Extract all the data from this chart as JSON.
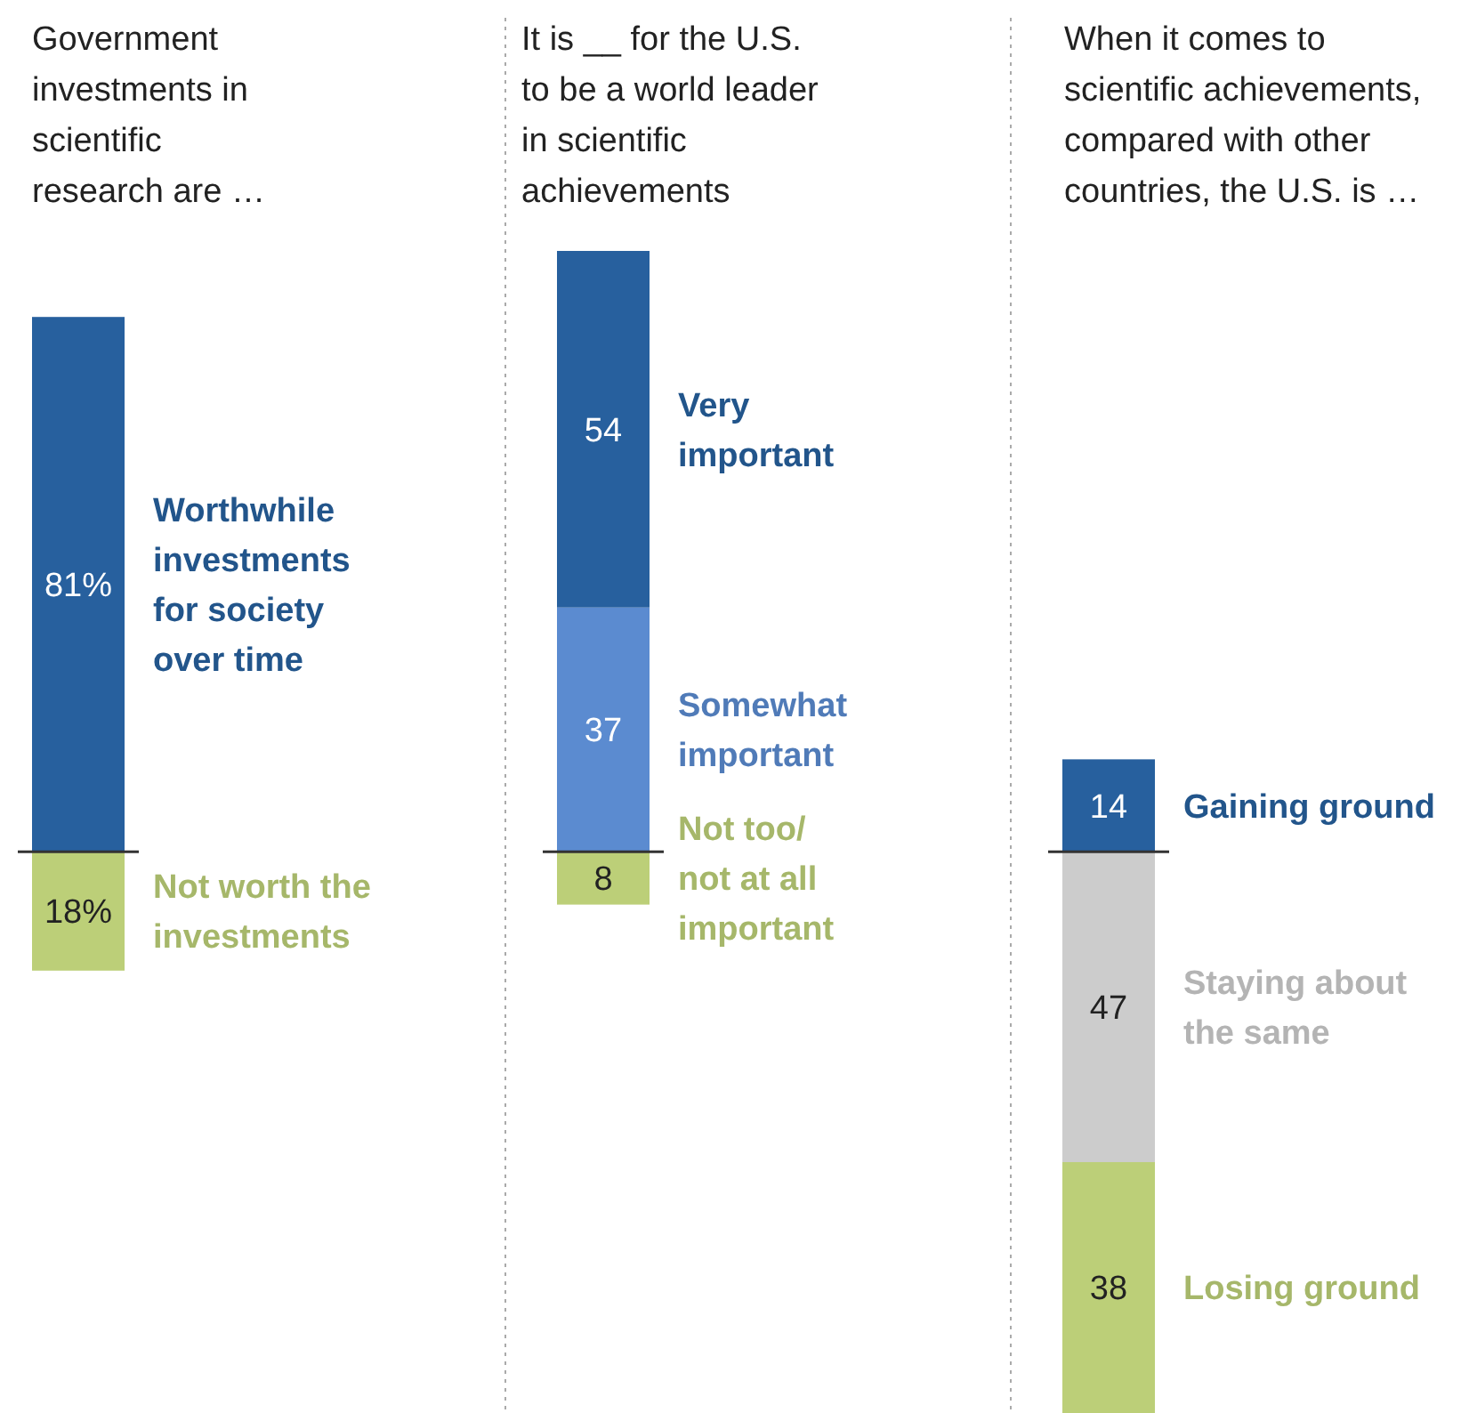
{
  "chart_data": [
    {
      "type": "bar",
      "stacked": true,
      "title": "Government investments in scientific research are …",
      "categories": [
        null
      ],
      "ref_lines": [
        {
          "axis": "y",
          "value": 18,
          "color": "#333333"
        }
      ],
      "series": [
        {
          "name": "Not worth the investments",
          "color": "#bccf78",
          "values": [
            18
          ],
          "value_labels": [
            "18%"
          ]
        },
        {
          "name": "Worthwhile investments for society over time",
          "color": "#27609e",
          "values": [
            81
          ],
          "value_labels": [
            "81%"
          ]
        }
      ]
    },
    {
      "type": "bar",
      "stacked": true,
      "data_labels": true,
      "title": "It is __ for the U.S. to be a world leader in scientific achievements",
      "categories": [
        null
      ],
      "ref_lines": [
        {
          "axis": "y",
          "value": 8,
          "color": "#333333"
        }
      ],
      "series": [
        {
          "name": "Not too/ not at all important",
          "color": "#bccf78",
          "values": [
            8
          ]
        },
        {
          "name": "Somewhat important",
          "color": "#5b8bd0",
          "values": [
            37
          ]
        },
        {
          "name": "Very important",
          "color": "#27609e",
          "values": [
            54
          ]
        }
      ]
    },
    {
      "type": "bar",
      "stacked": true,
      "data_labels": true,
      "title": "When it comes to scientific achievements, compared with other countries, the U.S. is …",
      "categories": [
        null
      ],
      "ref_lines": [
        {
          "axis": "y",
          "value": 85,
          "color": "#333333"
        }
      ],
      "series": [
        {
          "name": "Losing ground",
          "color": "#bccf78",
          "values": [
            38
          ]
        },
        {
          "name": "Staying about the same",
          "color": "#cccccc",
          "values": [
            47
          ]
        },
        {
          "name": "Gaining ground",
          "color": "#27609e",
          "values": [
            14
          ]
        }
      ]
    }
  ]
}
